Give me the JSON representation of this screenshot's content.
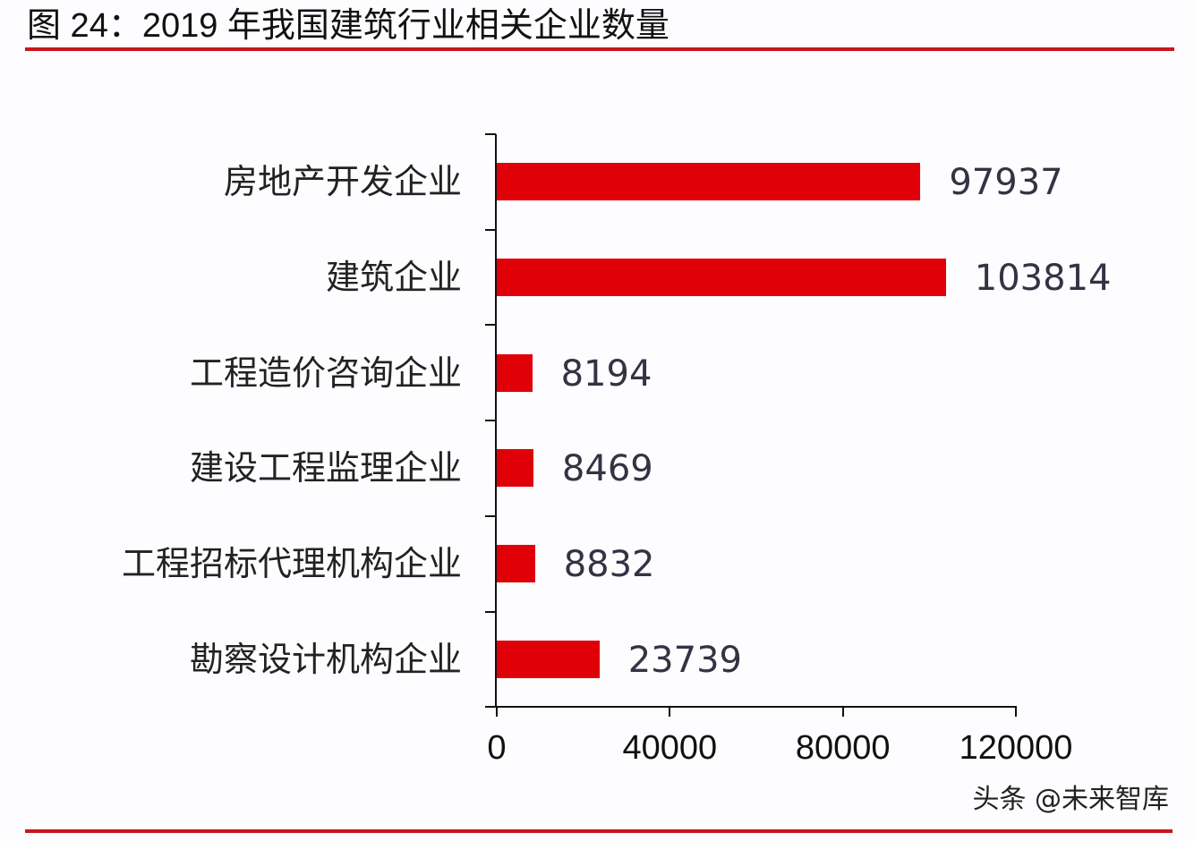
{
  "header": {
    "title": "图 24：2019 年我国建筑行业相关企业数量"
  },
  "footer": {
    "watermark": "头条 @未来智库"
  },
  "colors": {
    "bar": "#e00008",
    "rule": "#c8161d",
    "value_text": "#333344"
  },
  "chart_data": {
    "type": "bar",
    "orientation": "horizontal",
    "title": "图 24：2019 年我国建筑行业相关企业数量",
    "xlabel": "",
    "ylabel": "",
    "xlim": [
      0,
      120000
    ],
    "x_ticks": [
      "0",
      "40000",
      "80000",
      "120000"
    ],
    "grid": false,
    "legend": null,
    "categories": [
      "房地产开发企业",
      "建筑企业",
      "工程造价咨询企业",
      "建设工程监理企业",
      "工程招标代理机构企业",
      "勘察设计机构企业"
    ],
    "values": [
      97937,
      103814,
      8194,
      8469,
      8832,
      23739
    ],
    "value_labels": [
      "97937",
      "103814",
      "8194",
      "8469",
      "8832",
      "23739"
    ]
  }
}
